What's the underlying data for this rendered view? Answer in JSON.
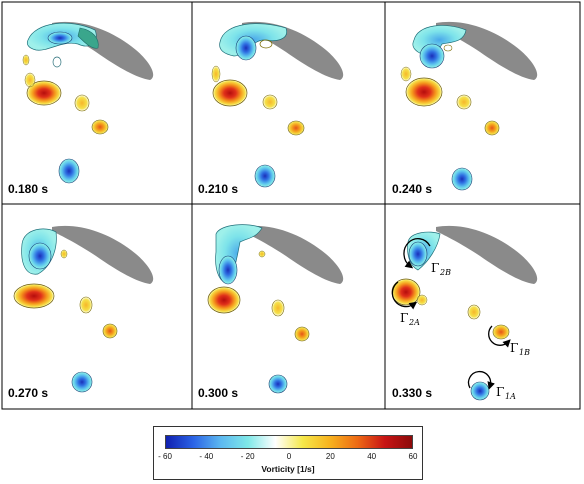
{
  "panels": [
    {
      "time": "0.180 s"
    },
    {
      "time": "0.210 s"
    },
    {
      "time": "0.240 s"
    },
    {
      "time": "0.270 s"
    },
    {
      "time": "0.300 s"
    },
    {
      "time": "0.330 s"
    }
  ],
  "circulation_labels": {
    "g2b": {
      "symbol": "Γ",
      "sub": "2B"
    },
    "g2a": {
      "symbol": "Γ",
      "sub": "2A"
    },
    "g1b": {
      "symbol": "Γ",
      "sub": "1B"
    },
    "g1a": {
      "symbol": "Γ",
      "sub": "1A"
    }
  },
  "colorbar": {
    "title": "Vorticity [1/s]",
    "min": -60,
    "max": 60,
    "ticks": [
      "- 60",
      "- 40",
      "- 20",
      "0",
      "20",
      "40",
      "60"
    ],
    "colors": [
      "#1020b0",
      "#2b63e6",
      "#5cb8f0",
      "#7fe8e8",
      "#ffffff",
      "#f5e84a",
      "#f7b21e",
      "#ee6a14",
      "#c81414",
      "#8c0a0a"
    ]
  }
}
